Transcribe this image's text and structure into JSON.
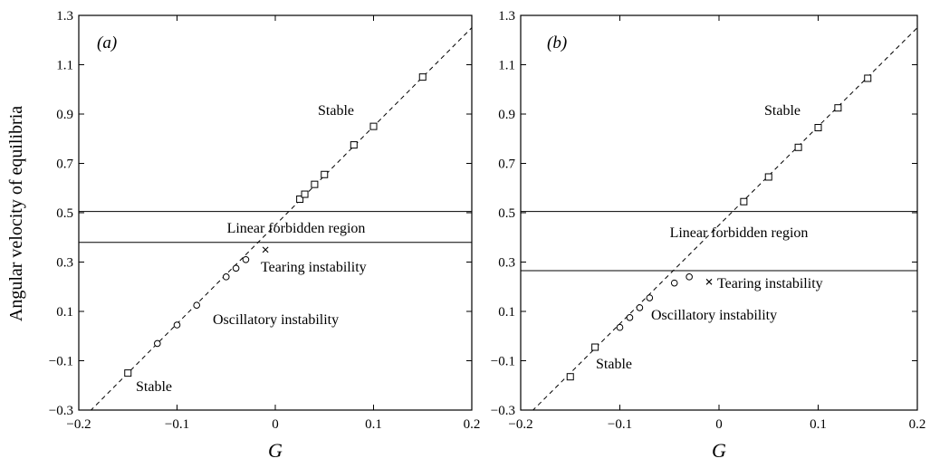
{
  "ylabel": "Angular velocity of equilibria",
  "chart_data": [
    {
      "type": "scatter",
      "panel_label": "(a)",
      "xlabel": "G",
      "xlim": [
        -0.2,
        0.2
      ],
      "ylim": [
        -0.3,
        1.3
      ],
      "xticks": [
        "−0.2",
        "−0.1",
        "0",
        "0.1",
        "0.2"
      ],
      "yticks": [
        "−0.3",
        "−0.1",
        "0.1",
        "0.3",
        "0.5",
        "0.7",
        "0.9",
        "1.1",
        "1.3"
      ],
      "line": {
        "style": "dashed",
        "x": [
          -0.2,
          0.2
        ],
        "y": [
          -0.35,
          1.25
        ]
      },
      "bounds": [
        0.505,
        0.38
      ],
      "series": [
        {
          "marker": "square",
          "x": [
            -0.15,
            0.025,
            0.03,
            0.04,
            0.05,
            0.08,
            0.1,
            0.15
          ],
          "y": [
            -0.15,
            0.555,
            0.575,
            0.615,
            0.655,
            0.775,
            0.85,
            1.05
          ]
        },
        {
          "marker": "circle",
          "x": [
            -0.12,
            -0.1,
            -0.08,
            -0.05,
            -0.04,
            -0.03
          ],
          "y": [
            -0.03,
            0.045,
            0.125,
            0.24,
            0.275,
            0.31
          ]
        },
        {
          "marker": "cross",
          "x": [
            -0.01
          ],
          "y": [
            0.35
          ]
        }
      ],
      "annotations": [
        "Stable",
        "Linear forbidden region",
        "Tearing instability",
        "Oscillatory instability",
        "Stable"
      ]
    },
    {
      "type": "scatter",
      "panel_label": "(b)",
      "xlabel": "G",
      "xlim": [
        -0.2,
        0.2
      ],
      "ylim": [
        -0.3,
        1.3
      ],
      "xticks": [
        "−0.2",
        "−0.1",
        "0",
        "0.1",
        "0.2"
      ],
      "yticks": [
        "−0.3",
        "−0.1",
        "0.1",
        "0.3",
        "0.5",
        "0.7",
        "0.9",
        "1.1",
        "1.3"
      ],
      "line": {
        "style": "dashed",
        "x": [
          -0.2,
          0.2
        ],
        "y": [
          -0.35,
          1.25
        ]
      },
      "bounds": [
        0.505,
        0.265
      ],
      "series": [
        {
          "marker": "square",
          "x": [
            -0.15,
            -0.125,
            0.025,
            0.05,
            0.08,
            0.1,
            0.12,
            0.15
          ],
          "y": [
            -0.165,
            -0.045,
            0.545,
            0.645,
            0.765,
            0.845,
            0.925,
            1.045
          ]
        },
        {
          "marker": "circle",
          "x": [
            -0.1,
            -0.09,
            -0.08,
            -0.07,
            -0.045,
            -0.03
          ],
          "y": [
            0.035,
            0.075,
            0.115,
            0.155,
            0.215,
            0.24
          ]
        },
        {
          "marker": "cross",
          "x": [
            -0.01
          ],
          "y": [
            0.22
          ]
        }
      ],
      "annotations": [
        "Stable",
        "Linear forbidden region",
        "Tearing instability",
        "Oscillatory instability",
        "Stable"
      ]
    }
  ]
}
